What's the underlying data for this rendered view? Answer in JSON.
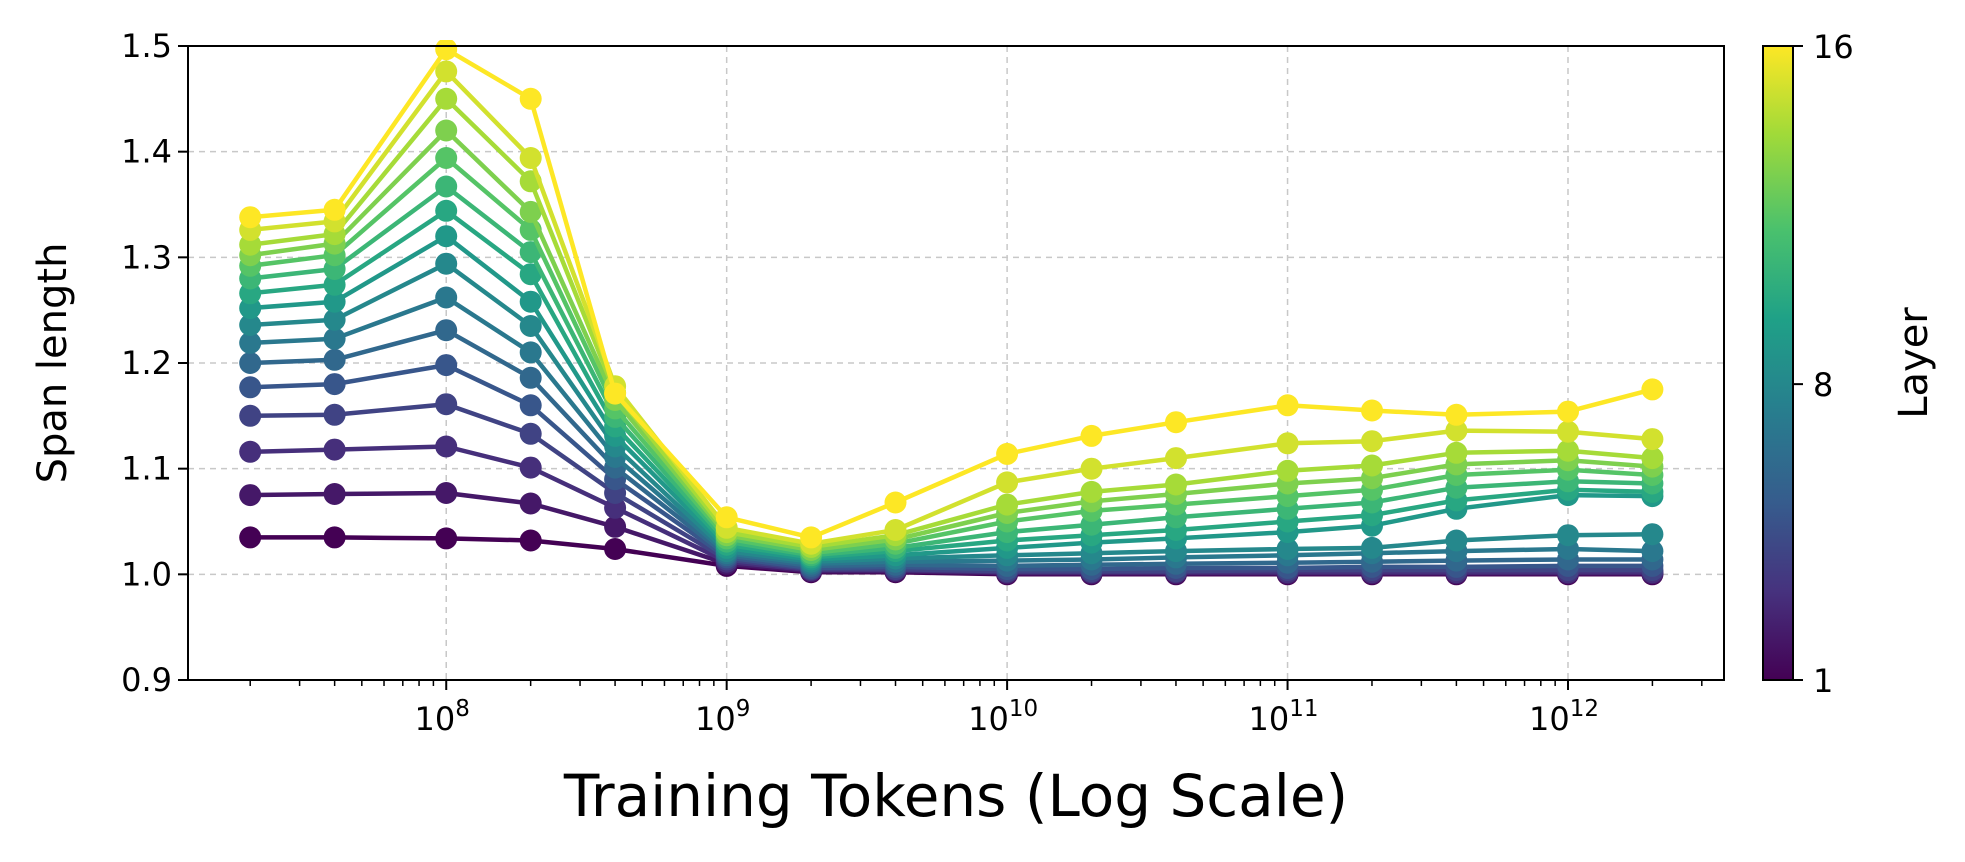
{
  "chart_data": {
    "type": "line",
    "title": "",
    "xlabel": "Training Tokens (Log Scale)",
    "ylabel": "Span length",
    "x_scale": "log",
    "xlim": [
      12000000,
      3600000000000
    ],
    "ylim": [
      0.9,
      1.5
    ],
    "grid": true,
    "x_tick_labels": [
      {
        "base": "10",
        "exp": "8"
      },
      {
        "base": "10",
        "exp": "9"
      },
      {
        "base": "10",
        "exp": "10"
      },
      {
        "base": "10",
        "exp": "11"
      },
      {
        "base": "10",
        "exp": "12"
      }
    ],
    "y_tick_labels": [
      "0.9",
      "1.0",
      "1.1",
      "1.2",
      "1.3",
      "1.4",
      "1.5"
    ],
    "colorbar": {
      "label": "Layer",
      "colormap": "viridis",
      "min": 1,
      "max": 16,
      "tick_labels": [
        "1",
        "8",
        "16"
      ]
    },
    "x": [
      20000000,
      40000000,
      100000000,
      200000000,
      400000000,
      1000000000,
      2000000000,
      4000000000,
      10000000000,
      20000000000,
      40000000000,
      100000000000,
      200000000000,
      400000000000,
      1000000000000,
      2000000000000
    ],
    "series": [
      {
        "layer": 1,
        "values": [
          1.035,
          1.035,
          1.034,
          1.032,
          1.024,
          1.008,
          1.002,
          1.002,
          1.0,
          1.0,
          1.0,
          1.0,
          1.0,
          1.0,
          1.0,
          1.0
        ]
      },
      {
        "layer": 2,
        "values": [
          1.075,
          1.076,
          1.077,
          1.067,
          1.045,
          1.01,
          1.003,
          1.003,
          1.001,
          1.001,
          1.001,
          1.001,
          1.001,
          1.001,
          1.001,
          1.001
        ]
      },
      {
        "layer": 3,
        "values": [
          1.116,
          1.118,
          1.121,
          1.101,
          1.063,
          1.012,
          1.004,
          1.004,
          1.002,
          1.002,
          1.002,
          1.002,
          1.002,
          1.002,
          1.002,
          1.002
        ]
      },
      {
        "layer": 4,
        "values": [
          1.15,
          1.151,
          1.161,
          1.133,
          1.077,
          1.014,
          1.005,
          1.005,
          1.003,
          1.003,
          1.003,
          1.004,
          1.004,
          1.004,
          1.004,
          1.004
        ]
      },
      {
        "layer": 5,
        "values": [
          1.177,
          1.18,
          1.198,
          1.16,
          1.09,
          1.016,
          1.006,
          1.007,
          1.005,
          1.005,
          1.006,
          1.006,
          1.007,
          1.007,
          1.008,
          1.008
        ]
      },
      {
        "layer": 6,
        "values": [
          1.2,
          1.203,
          1.231,
          1.186,
          1.101,
          1.018,
          1.008,
          1.009,
          1.008,
          1.009,
          1.01,
          1.011,
          1.012,
          1.013,
          1.014,
          1.014
        ]
      },
      {
        "layer": 7,
        "values": [
          1.219,
          1.223,
          1.262,
          1.21,
          1.111,
          1.02,
          1.01,
          1.012,
          1.013,
          1.014,
          1.016,
          1.018,
          1.02,
          1.022,
          1.024,
          1.022
        ]
      },
      {
        "layer": 8,
        "values": [
          1.236,
          1.241,
          1.294,
          1.235,
          1.121,
          1.022,
          1.012,
          1.015,
          1.018,
          1.02,
          1.022,
          1.024,
          1.025,
          1.032,
          1.037,
          1.038
        ]
      },
      {
        "layer": 9,
        "values": [
          1.252,
          1.258,
          1.32,
          1.258,
          1.131,
          1.025,
          1.014,
          1.018,
          1.025,
          1.03,
          1.034,
          1.04,
          1.046,
          1.062,
          1.075,
          1.074
        ]
      },
      {
        "layer": 10,
        "values": [
          1.266,
          1.274,
          1.344,
          1.284,
          1.14,
          1.028,
          1.016,
          1.022,
          1.032,
          1.037,
          1.042,
          1.05,
          1.056,
          1.07,
          1.08,
          1.078
        ]
      },
      {
        "layer": 11,
        "values": [
          1.28,
          1.289,
          1.367,
          1.305,
          1.149,
          1.031,
          1.018,
          1.025,
          1.04,
          1.047,
          1.054,
          1.062,
          1.068,
          1.082,
          1.088,
          1.086
        ]
      },
      {
        "layer": 12,
        "values": [
          1.292,
          1.302,
          1.394,
          1.326,
          1.157,
          1.034,
          1.02,
          1.029,
          1.05,
          1.06,
          1.066,
          1.074,
          1.08,
          1.094,
          1.099,
          1.094
        ]
      },
      {
        "layer": 13,
        "values": [
          1.302,
          1.313,
          1.42,
          1.343,
          1.165,
          1.037,
          1.023,
          1.033,
          1.058,
          1.069,
          1.076,
          1.086,
          1.091,
          1.104,
          1.108,
          1.102
        ]
      },
      {
        "layer": 14,
        "values": [
          1.312,
          1.322,
          1.45,
          1.372,
          1.172,
          1.04,
          1.026,
          1.037,
          1.066,
          1.078,
          1.085,
          1.098,
          1.103,
          1.115,
          1.117,
          1.11
        ]
      },
      {
        "layer": 15,
        "values": [
          1.326,
          1.334,
          1.476,
          1.394,
          1.178,
          1.044,
          1.029,
          1.042,
          1.087,
          1.1,
          1.11,
          1.124,
          1.126,
          1.136,
          1.135,
          1.128
        ]
      },
      {
        "layer": 16,
        "values": [
          1.338,
          1.345,
          1.497,
          1.45,
          1.171,
          1.054,
          1.035,
          1.068,
          1.114,
          1.131,
          1.144,
          1.16,
          1.155,
          1.151,
          1.154,
          1.175
        ]
      }
    ]
  }
}
